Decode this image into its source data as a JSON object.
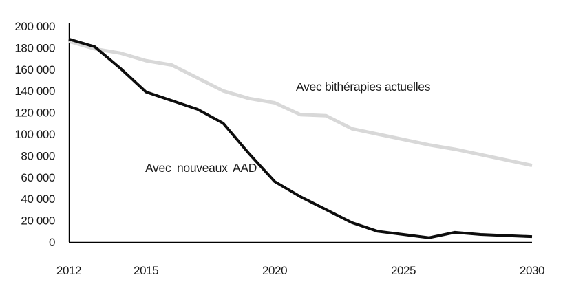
{
  "chart_data": {
    "type": "line",
    "title": "",
    "xlabel": "",
    "ylabel": "",
    "grid": false,
    "legend_position": "inline-annotations",
    "background_color": "#ffffff",
    "axis_color": "#000000",
    "x": [
      2012,
      2013,
      2014,
      2015,
      2016,
      2017,
      2018,
      2019,
      2020,
      2021,
      2022,
      2023,
      2024,
      2025,
      2026,
      2027,
      2028,
      2029,
      2030
    ],
    "series": [
      {
        "id": "bitherapies",
        "name": "Avec bithérapies actuelles",
        "color": "#d8d8d8",
        "stroke_width": 5,
        "values": [
          186000,
          179000,
          175000,
          168000,
          164000,
          152000,
          140000,
          133000,
          129000,
          118000,
          117000,
          105000,
          100000,
          95000,
          90000,
          86000,
          81000,
          76000,
          71000
        ]
      },
      {
        "id": "nouveaux_aad",
        "name": "Avec nouveaux AAD",
        "color": "#0d0d0d",
        "stroke_width": 4,
        "values": [
          188000,
          181000,
          161000,
          139000,
          131000,
          123000,
          110000,
          82000,
          56000,
          42000,
          30000,
          18000,
          10000,
          7000,
          4000,
          9000,
          7000,
          6000,
          5000
        ]
      }
    ],
    "annotations": [
      {
        "text": "Avec bithérapies actuelles",
        "series": "bitherapies"
      },
      {
        "text": "Avec nouveaux AAD",
        "series": "nouveaux_aad"
      }
    ],
    "y_axis": {
      "min": 0,
      "max": 200000,
      "tick_step": 20000,
      "tick_values": [
        0,
        20000,
        40000,
        60000,
        80000,
        100000,
        120000,
        140000,
        160000,
        180000,
        200000
      ],
      "tick_labels": [
        "0",
        "20 000",
        "40 000",
        "60 000",
        "80 000",
        "100 000",
        "120 000",
        "140 000",
        "160 000",
        "180 000",
        "200 000"
      ]
    },
    "x_axis": {
      "min": 2012,
      "max": 2030,
      "tick_values": [
        2012,
        2015,
        2020,
        2025,
        2030
      ],
      "tick_labels": [
        "2012",
        "2015",
        "2020",
        "2025",
        "2030"
      ]
    }
  }
}
